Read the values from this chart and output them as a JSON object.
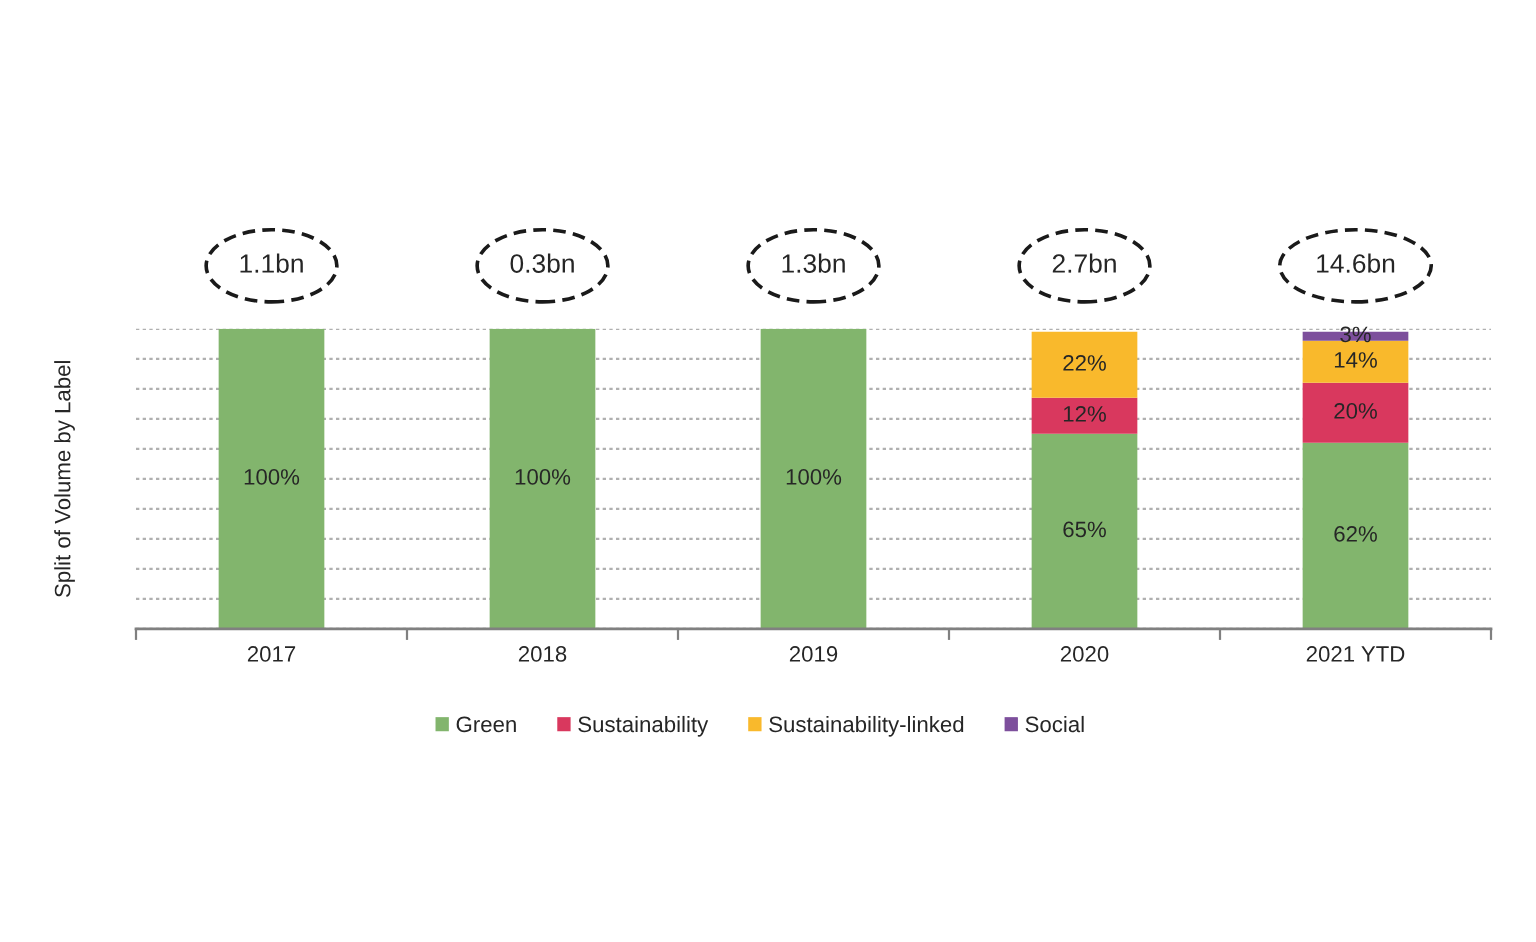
{
  "chart_data": {
    "type": "bar",
    "stacked": true,
    "ylabel": "Split of Volume by Label",
    "categories": [
      "2017",
      "2018",
      "2019",
      "2020",
      "2021 YTD"
    ],
    "series": [
      {
        "name": "Green",
        "color": "#82b56d",
        "values": [
          100,
          100,
          100,
          65,
          62
        ],
        "value_labels": [
          "100%",
          "100%",
          "100%",
          "65%",
          "62%"
        ]
      },
      {
        "name": "Sustainability",
        "color": "#d9385e",
        "values": [
          null,
          null,
          null,
          12,
          20
        ],
        "value_labels": [
          null,
          null,
          null,
          "12%",
          "20%"
        ]
      },
      {
        "name": "Sustainability-linked",
        "color": "#f9b92c",
        "values": [
          null,
          null,
          null,
          22,
          14
        ],
        "value_labels": [
          null,
          null,
          null,
          "22%",
          "14%"
        ]
      },
      {
        "name": "Social",
        "color": "#7d4f9c",
        "values": [
          null,
          null,
          null,
          null,
          3
        ],
        "value_labels": [
          null,
          null,
          null,
          null,
          "3%"
        ]
      }
    ],
    "annotations": [
      "1.1bn",
      "0.3bn",
      "1.3bn",
      "2.7bn",
      "14.6bn"
    ],
    "ylim": [
      0,
      100
    ],
    "yticks": [
      {
        "value": 0,
        "label": null
      },
      {
        "value": 10,
        "label": null
      },
      {
        "value": 20,
        "label": null
      },
      {
        "value": 30,
        "label": null
      },
      {
        "value": 40,
        "label": null
      },
      {
        "value": 50,
        "label": null
      },
      {
        "value": 60,
        "label": null
      },
      {
        "value": 70,
        "label": null
      },
      {
        "value": 80,
        "label": null
      },
      {
        "value": 90,
        "label": null
      },
      {
        "value": 100,
        "label": null
      }
    ],
    "grid": "y",
    "legend": "bottom",
    "tick_labels": "x"
  }
}
